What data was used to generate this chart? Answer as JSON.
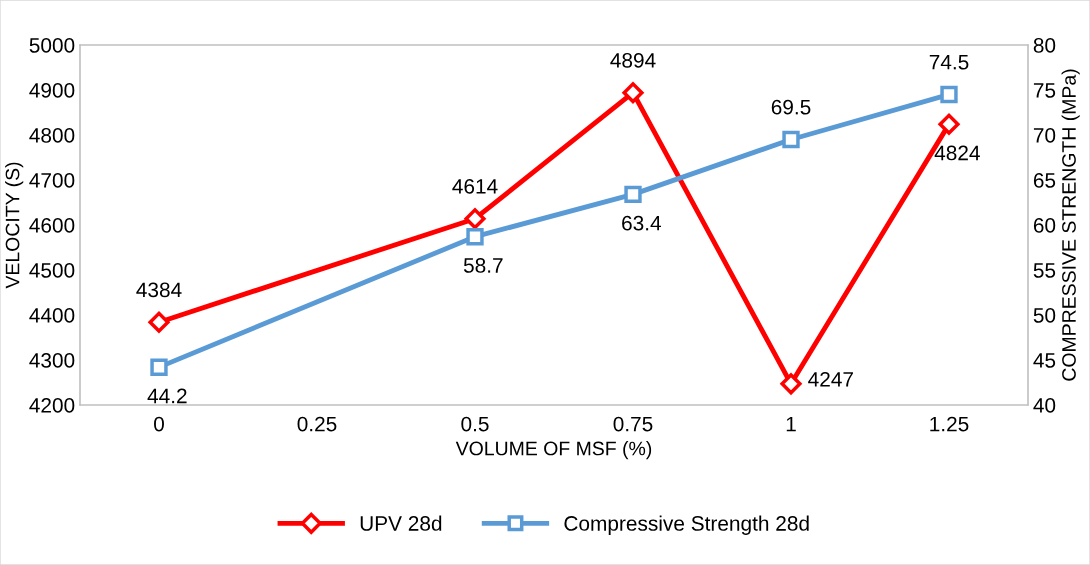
{
  "chart_data": {
    "type": "line",
    "xlabel": "VOLUME OF MSF (%)",
    "ylabel": "VELOCITY (S)",
    "y2label": "COMPRESSIVE STRENGTH (MPa)",
    "categories": [
      "0",
      "0.25",
      "0.5",
      "0.75",
      "1",
      "1.25"
    ],
    "series": [
      {
        "name": "UPV 28d",
        "color": "#ff0000",
        "marker": "diamond",
        "values": [
          4384,
          null,
          4614,
          4894,
          4247,
          4824
        ]
      },
      {
        "name": "Compressive Strength 28d",
        "color": "#5b9bd5",
        "marker": "square",
        "axis": "y2",
        "values": [
          44.2,
          null,
          58.7,
          63.4,
          69.5,
          74.5
        ]
      }
    ],
    "ylim": [
      4200,
      5000
    ],
    "yticks": [
      4200,
      4300,
      4400,
      4500,
      4600,
      4700,
      4800,
      4900,
      5000
    ],
    "y2lim": [
      40,
      80
    ],
    "y2ticks": [
      40,
      45,
      50,
      55,
      60,
      65,
      70,
      75,
      80
    ],
    "data_labels": true,
    "legend": "bottom",
    "grid": false,
    "line_style": "solid"
  }
}
